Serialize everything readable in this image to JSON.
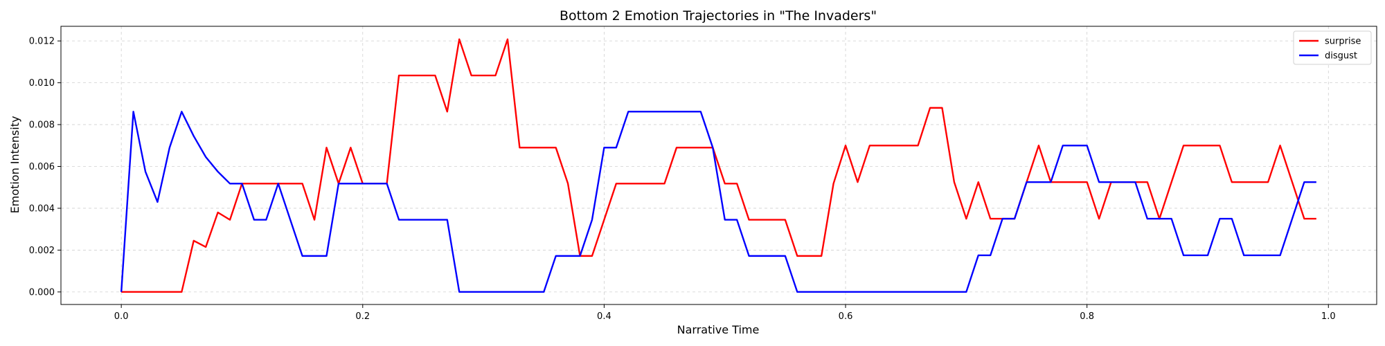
{
  "chart_data": {
    "type": "line",
    "title": "Bottom 2 Emotion Trajectories in \"The Invaders\"",
    "xlabel": "Narrative Time",
    "ylabel": "Emotion Intensity",
    "xlim": [
      -0.05,
      1.04
    ],
    "ylim": [
      -0.0006,
      0.0127
    ],
    "xticks": [
      0.0,
      0.2,
      0.4,
      0.6,
      0.8,
      1.0
    ],
    "xtick_labels": [
      "0.0",
      "0.2",
      "0.4",
      "0.6",
      "0.8",
      "1.0"
    ],
    "yticks": [
      0.0,
      0.002,
      0.004,
      0.006,
      0.008,
      0.01,
      0.012
    ],
    "ytick_labels": [
      "0.000",
      "0.002",
      "0.004",
      "0.006",
      "0.008",
      "0.010",
      "0.012"
    ],
    "grid": true,
    "legend_position": "top-right",
    "x": [
      0.0,
      0.01,
      0.02,
      0.03,
      0.04,
      0.05,
      0.06,
      0.07,
      0.08,
      0.09,
      0.1,
      0.11,
      0.12,
      0.13,
      0.14,
      0.15,
      0.16,
      0.17,
      0.18,
      0.19,
      0.2,
      0.21,
      0.22,
      0.23,
      0.24,
      0.25,
      0.26,
      0.27,
      0.28,
      0.29,
      0.3,
      0.31,
      0.32,
      0.33,
      0.34,
      0.35,
      0.36,
      0.37,
      0.38,
      0.39,
      0.4,
      0.41,
      0.42,
      0.43,
      0.44,
      0.45,
      0.46,
      0.47,
      0.48,
      0.49,
      0.5,
      0.51,
      0.52,
      0.53,
      0.54,
      0.55,
      0.56,
      0.57,
      0.58,
      0.59,
      0.6,
      0.61,
      0.62,
      0.63,
      0.64,
      0.65,
      0.66,
      0.67,
      0.68,
      0.69,
      0.7,
      0.71,
      0.72,
      0.73,
      0.74,
      0.75,
      0.76,
      0.77,
      0.78,
      0.79,
      0.8,
      0.81,
      0.82,
      0.83,
      0.84,
      0.85,
      0.86,
      0.87,
      0.88,
      0.89,
      0.9,
      0.91,
      0.92,
      0.93,
      0.94,
      0.95,
      0.96,
      0.97,
      0.98,
      0.99
    ],
    "series": [
      {
        "name": "surprise",
        "color": "#ff0000",
        "values": [
          0.0,
          0.0,
          0.0,
          0.0,
          0.0,
          0.0,
          0.00245,
          0.00215,
          0.0038,
          0.00345,
          0.00518,
          0.00518,
          0.00518,
          0.00518,
          0.00518,
          0.00518,
          0.00345,
          0.0069,
          0.00518,
          0.0069,
          0.00518,
          0.00518,
          0.00518,
          0.01035,
          0.01035,
          0.01035,
          0.01035,
          0.00862,
          0.01208,
          0.01035,
          0.01035,
          0.01035,
          0.01208,
          0.0069,
          0.0069,
          0.0069,
          0.0069,
          0.00518,
          0.00172,
          0.00172,
          0.00345,
          0.00518,
          0.00518,
          0.00518,
          0.00518,
          0.00518,
          0.0069,
          0.0069,
          0.0069,
          0.0069,
          0.00518,
          0.00518,
          0.00345,
          0.00345,
          0.00345,
          0.00345,
          0.00172,
          0.00172,
          0.00172,
          0.00518,
          0.007,
          0.00525,
          0.007,
          0.007,
          0.007,
          0.007,
          0.007,
          0.0088,
          0.0088,
          0.00525,
          0.0035,
          0.00525,
          0.0035,
          0.0035,
          0.0035,
          0.00525,
          0.007,
          0.00525,
          0.00525,
          0.00525,
          0.00525,
          0.0035,
          0.00525,
          0.00525,
          0.00525,
          0.00525,
          0.0035,
          0.00525,
          0.007,
          0.007,
          0.007,
          0.007,
          0.00525,
          0.00525,
          0.00525,
          0.00525,
          0.007,
          0.00525,
          0.0035,
          0.0035
        ]
      },
      {
        "name": "disgust",
        "color": "#0000ff",
        "values": [
          0.0,
          0.00862,
          0.00575,
          0.0043,
          0.0069,
          0.00862,
          0.00745,
          0.00645,
          0.00575,
          0.00518,
          0.00518,
          0.00345,
          0.00345,
          0.00518,
          0.00345,
          0.00172,
          0.00172,
          0.00172,
          0.00518,
          0.00518,
          0.00518,
          0.00518,
          0.00518,
          0.00345,
          0.00345,
          0.00345,
          0.00345,
          0.00345,
          0.0,
          0.0,
          0.0,
          0.0,
          0.0,
          0.0,
          0.0,
          0.0,
          0.00172,
          0.00172,
          0.00172,
          0.00345,
          0.0069,
          0.0069,
          0.00862,
          0.00862,
          0.00862,
          0.00862,
          0.00862,
          0.00862,
          0.00862,
          0.0069,
          0.00345,
          0.00345,
          0.00172,
          0.00172,
          0.00172,
          0.00172,
          0.0,
          0.0,
          0.0,
          0.0,
          0.0,
          0.0,
          0.0,
          0.0,
          0.0,
          0.0,
          0.0,
          0.0,
          0.0,
          0.0,
          0.0,
          0.00175,
          0.00175,
          0.0035,
          0.0035,
          0.00525,
          0.00525,
          0.00525,
          0.007,
          0.007,
          0.007,
          0.00525,
          0.00525,
          0.00525,
          0.00525,
          0.0035,
          0.0035,
          0.0035,
          0.00175,
          0.00175,
          0.00175,
          0.0035,
          0.0035,
          0.00175,
          0.00175,
          0.00175,
          0.00175,
          0.0035,
          0.00525,
          0.00525
        ]
      }
    ]
  }
}
